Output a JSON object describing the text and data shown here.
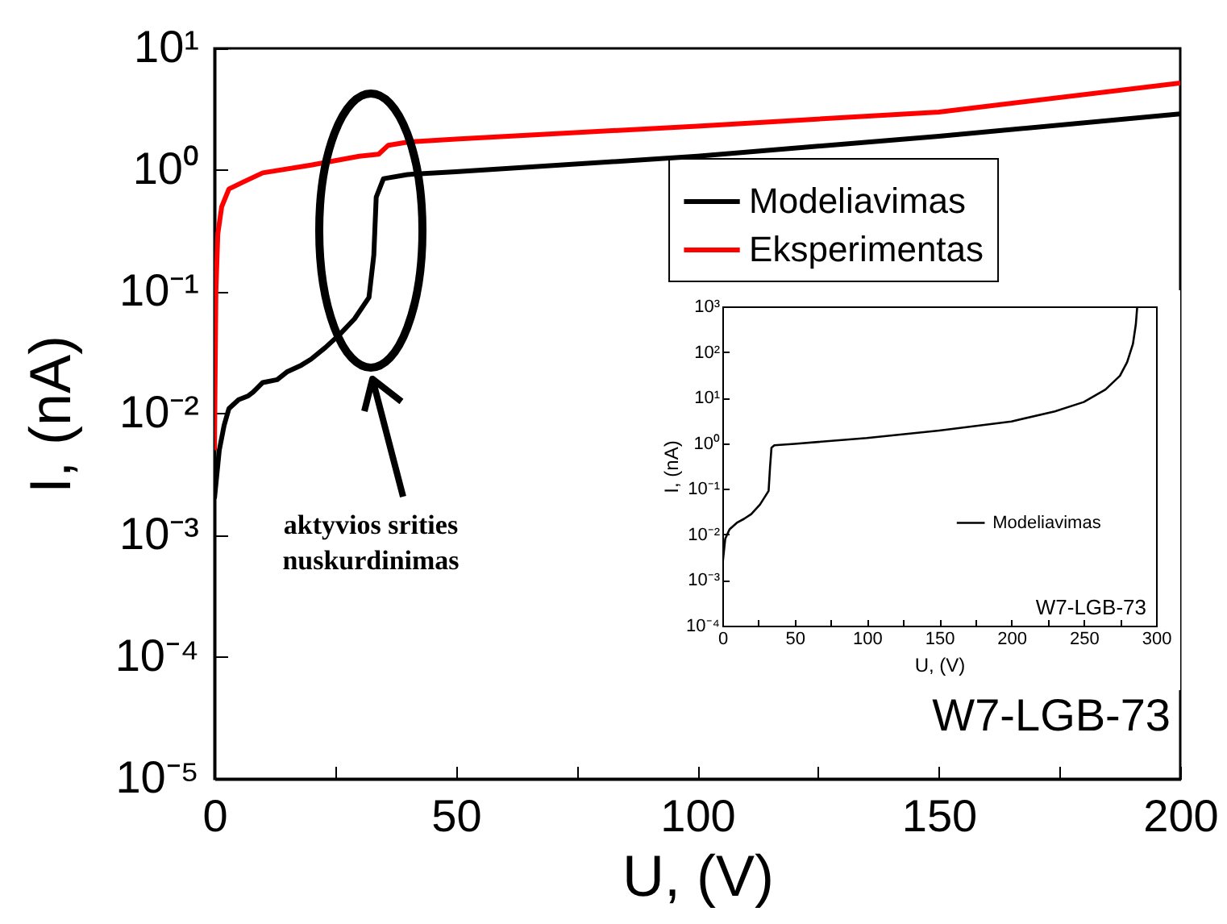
{
  "chart_data": [
    {
      "type": "line",
      "xlabel": "U, (V)",
      "ylabel": "I, (nA)",
      "log": "y",
      "legend": "top right",
      "xlim": [
        0,
        200
      ],
      "xticks": [
        0,
        {
          "value": 25,
          "label": null
        },
        50,
        {
          "value": 75,
          "label": null
        },
        100,
        {
          "value": 125,
          "label": null
        },
        150,
        {
          "value": 175,
          "label": null
        },
        200
      ],
      "ylim": [
        1e-05,
        10
      ],
      "yticks": [
        {
          "value": 1e-05,
          "label": "10⁻⁵"
        },
        {
          "value": 0.0001,
          "label": "10⁻⁴"
        },
        {
          "value": 0.001,
          "label": "10⁻³"
        },
        {
          "value": 0.01,
          "label": "10⁻²"
        },
        {
          "value": 0.1,
          "label": "10⁻¹"
        },
        {
          "value": 1,
          "label": "10⁰"
        },
        {
          "value": 10,
          "label": "10¹"
        }
      ],
      "series": [
        {
          "name": "Modeliavimas",
          "color": "#000000",
          "x": [
            0,
            1,
            2,
            3,
            5,
            7,
            8,
            10,
            13,
            15,
            18,
            20,
            23,
            26,
            29,
            32,
            33,
            33.5,
            35,
            40,
            50,
            100,
            150,
            200
          ],
          "values": [
            0.002,
            0.005,
            0.008,
            0.011,
            0.013,
            0.014,
            0.015,
            0.018,
            0.019,
            0.022,
            0.025,
            0.028,
            0.035,
            0.045,
            0.06,
            0.09,
            0.2,
            0.6,
            0.85,
            0.92,
            0.97,
            1.3,
            1.9,
            2.9
          ]
        },
        {
          "name": "Eksperimentas",
          "color": "#ff0000",
          "x": [
            0,
            0.3,
            0.7,
            1.5,
            3,
            6,
            10,
            20,
            30,
            34,
            36,
            40,
            50,
            100,
            150,
            200
          ],
          "values": [
            0.005,
            0.1,
            0.3,
            0.5,
            0.7,
            0.8,
            0.95,
            1.1,
            1.3,
            1.35,
            1.6,
            1.7,
            1.8,
            2.3,
            3.0,
            5.2
          ]
        }
      ],
      "annotations": [
        "aktyvios srities\nnuskurdinimas",
        "W7-LGB-73"
      ]
    },
    {
      "type": "line",
      "xlabel": "U, (V)",
      "ylabel": "I, (nA)",
      "log": "y",
      "legend": "right",
      "xlim": [
        0,
        300
      ],
      "xticks": [
        0,
        {
          "value": 25,
          "label": null
        },
        50,
        {
          "value": 75,
          "label": null
        },
        100,
        {
          "value": 125,
          "label": null
        },
        150,
        {
          "value": 175,
          "label": null
        },
        200,
        {
          "value": 225,
          "label": null
        },
        250,
        {
          "value": 275,
          "label": null
        },
        300
      ],
      "ylim": [
        0.0001,
        1000
      ],
      "yticks": [
        {
          "value": 0.0001,
          "label": "10⁻⁴"
        },
        {
          "value": 0.001,
          "label": "10⁻³"
        },
        {
          "value": 0.01,
          "label": "10⁻²"
        },
        {
          "value": 0.1,
          "label": "10⁻¹"
        },
        {
          "value": 1,
          "label": "10⁰"
        },
        {
          "value": 10,
          "label": "10¹"
        },
        {
          "value": 100,
          "label": "10²"
        },
        {
          "value": 1000,
          "label": "10³"
        }
      ],
      "series": [
        {
          "name": "Modeliavimas",
          "color": "#000000",
          "x": [
            0,
            2,
            5,
            10,
            15,
            20,
            26,
            32,
            33,
            34,
            36,
            50,
            100,
            150,
            200,
            230,
            250,
            265,
            275,
            280,
            284,
            286,
            287
          ],
          "values": [
            0.002,
            0.008,
            0.013,
            0.018,
            0.022,
            0.028,
            0.045,
            0.09,
            0.3,
            0.8,
            0.9,
            0.97,
            1.3,
            1.9,
            3,
            5,
            8,
            15,
            30,
            60,
            150,
            400,
            1000
          ]
        }
      ],
      "annotations": [
        "W7-LGB-73"
      ]
    }
  ]
}
